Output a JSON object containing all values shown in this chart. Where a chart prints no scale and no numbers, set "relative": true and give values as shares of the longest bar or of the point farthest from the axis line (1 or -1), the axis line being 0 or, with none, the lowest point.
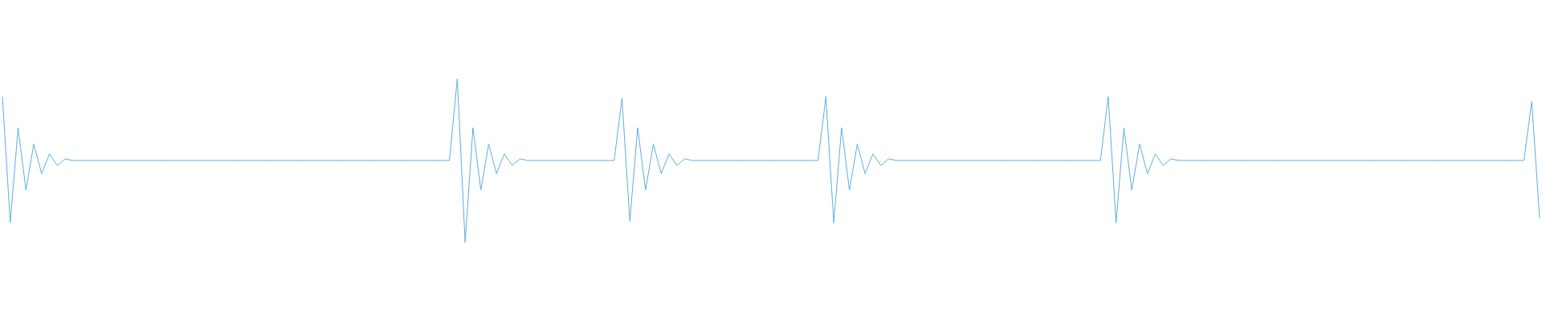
{
  "chart_data": {
    "type": "line",
    "relative": true,
    "color": "#5dade2",
    "categories": [
      null,
      null,
      null,
      null,
      null,
      null,
      null,
      null,
      null,
      null,
      null,
      null,
      null,
      null,
      null,
      null,
      null,
      null,
      null,
      null,
      null,
      null,
      null,
      null,
      null,
      null,
      null,
      null,
      null,
      null,
      null,
      null,
      null,
      null,
      null,
      null,
      null,
      null,
      null,
      null,
      null,
      null,
      null,
      null,
      null,
      null,
      null,
      null,
      null,
      null,
      null,
      null,
      null,
      null,
      null,
      null,
      null,
      null,
      null,
      null,
      null,
      null,
      null,
      null,
      null,
      null,
      null,
      null,
      null,
      null,
      null,
      null,
      null,
      null,
      null,
      null,
      null,
      null,
      null,
      null,
      null,
      null,
      null,
      null,
      null,
      null,
      null,
      null,
      null,
      null,
      null,
      null,
      null,
      null,
      null,
      null,
      null,
      null,
      null,
      null,
      null,
      null,
      null,
      null,
      null,
      null,
      null,
      null,
      null,
      null,
      null,
      null,
      null,
      null,
      null,
      null,
      null,
      null,
      null,
      null,
      null,
      null,
      null,
      null,
      null,
      null,
      null,
      null,
      null,
      null,
      null,
      null,
      null,
      null,
      null,
      null,
      null,
      null,
      null,
      null,
      null,
      null,
      null,
      null,
      null,
      null,
      null,
      null,
      null,
      null,
      null,
      null,
      null,
      null,
      null,
      null,
      null,
      null,
      null,
      null,
      null,
      null,
      null,
      null,
      null,
      null,
      null,
      null,
      null,
      null,
      null,
      null,
      null,
      null,
      null,
      null,
      null,
      null,
      null,
      null,
      null,
      null,
      null,
      null,
      null,
      null,
      null,
      null,
      null,
      null,
      null,
      null,
      null,
      null,
      null,
      null,
      null
    ],
    "values": [
      0.89,
      0.12,
      0.7,
      0.32,
      0.6,
      0.42,
      0.54,
      0.47,
      0.51,
      0.5,
      0.5,
      0.5,
      0.5,
      0.5,
      0.5,
      0.5,
      0.5,
      0.5,
      0.5,
      0.5,
      0.5,
      0.5,
      0.5,
      0.5,
      0.5,
      0.5,
      0.5,
      0.5,
      0.5,
      0.5,
      0.5,
      0.5,
      0.5,
      0.5,
      0.5,
      0.5,
      0.5,
      0.5,
      0.5,
      0.5,
      0.5,
      0.5,
      0.5,
      0.5,
      0.5,
      0.5,
      0.5,
      0.5,
      0.5,
      0.5,
      0.5,
      0.5,
      0.5,
      0.5,
      0.5,
      0.5,
      0.5,
      0.5,
      1,
      0,
      0.7,
      0.32,
      0.6,
      0.42,
      0.54,
      0.47,
      0.51,
      0.5,
      0.5,
      0.5,
      0.5,
      0.5,
      0.5,
      0.5,
      0.5,
      0.5,
      0.5,
      0.5,
      0.5,
      0.88,
      0.13,
      0.7,
      0.32,
      0.6,
      0.42,
      0.54,
      0.47,
      0.51,
      0.5,
      0.5,
      0.5,
      0.5,
      0.5,
      0.5,
      0.5,
      0.5,
      0.5,
      0.5,
      0.5,
      0.5,
      0.5,
      0.5,
      0.5,
      0.5,
      0.5,
      0.89,
      0.12,
      0.7,
      0.32,
      0.6,
      0.42,
      0.54,
      0.47,
      0.51,
      0.5,
      0.5,
      0.5,
      0.5,
      0.5,
      0.5,
      0.5,
      0.5,
      0.5,
      0.5,
      0.5,
      0.5,
      0.5,
      0.5,
      0.5,
      0.5,
      0.5,
      0.5,
      0.5,
      0.5,
      0.5,
      0.5,
      0.5,
      0.5,
      0.5,
      0.5,
      0.5,
      0.89,
      0.12,
      0.7,
      0.32,
      0.6,
      0.42,
      0.54,
      0.47,
      0.51,
      0.5,
      0.5,
      0.5,
      0.5,
      0.5,
      0.5,
      0.5,
      0.5,
      0.5,
      0.5,
      0.5,
      0.5,
      0.5,
      0.5,
      0.5,
      0.5,
      0.5,
      0.5,
      0.5,
      0.5,
      0.5,
      0.5,
      0.5,
      0.5,
      0.5,
      0.5,
      0.5,
      0.5,
      0.5,
      0.5,
      0.5,
      0.5,
      0.5,
      0.5,
      0.5,
      0.5,
      0.5,
      0.5,
      0.5,
      0.5,
      0.5,
      0.5,
      0.5,
      0.5,
      0.5,
      0.86,
      0.15
    ]
  }
}
